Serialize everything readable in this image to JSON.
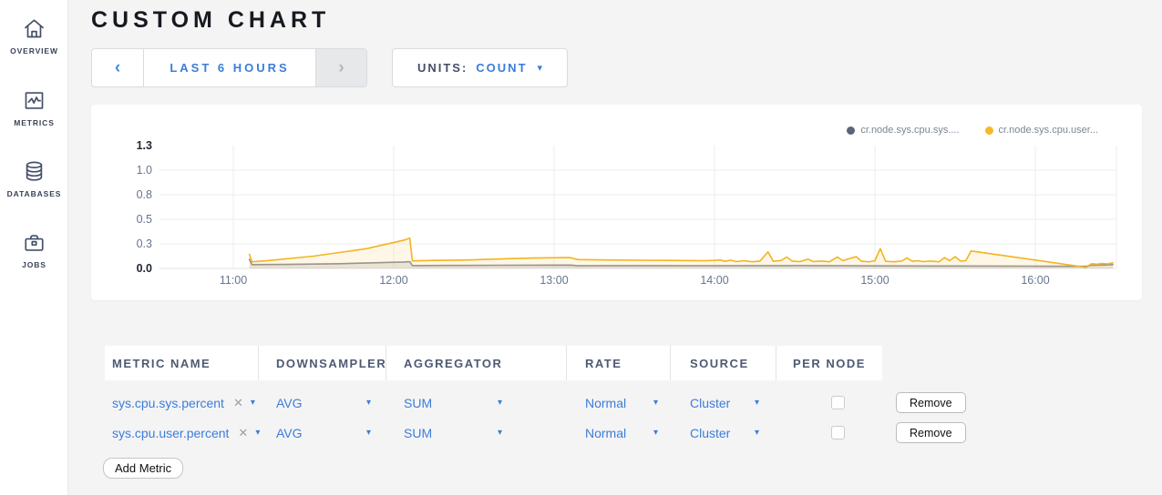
{
  "sidebar": {
    "items": [
      {
        "label": "OVERVIEW",
        "icon": "home-icon"
      },
      {
        "label": "METRICS",
        "icon": "metrics-icon"
      },
      {
        "label": "DATABASES",
        "icon": "databases-icon"
      },
      {
        "label": "JOBS",
        "icon": "jobs-icon"
      }
    ]
  },
  "header": {
    "title": "CUSTOM CHART"
  },
  "controls": {
    "time_range": {
      "prev": "‹",
      "label": "LAST 6 HOURS",
      "next": "›"
    },
    "units": {
      "label": "UNITS:",
      "value": "COUNT",
      "caret": "▾"
    }
  },
  "colors": {
    "accent": "#3b7dd8",
    "page_bg": "#f4f4f5"
  },
  "chart_data": {
    "type": "line",
    "ylim": [
      0,
      1.3
    ],
    "xlim_minutes": [
      632,
      990
    ],
    "grid": true,
    "legend_position": "top-right",
    "y_ticks": [
      {
        "v": 1.3,
        "label": "1.3",
        "bold": true,
        "gridline": false
      },
      {
        "v": 1.04,
        "label": "1.0",
        "bold": false,
        "gridline": true
      },
      {
        "v": 0.78,
        "label": "0.8",
        "bold": false,
        "gridline": true
      },
      {
        "v": 0.52,
        "label": "0.5",
        "bold": false,
        "gridline": true
      },
      {
        "v": 0.26,
        "label": "0.3",
        "bold": false,
        "gridline": true
      },
      {
        "v": 0,
        "label": "0.0",
        "bold": true,
        "gridline": true
      }
    ],
    "x_ticks": [
      {
        "t": 660,
        "label": "11:00"
      },
      {
        "t": 720,
        "label": "12:00"
      },
      {
        "t": 780,
        "label": "13:00"
      },
      {
        "t": 840,
        "label": "14:00"
      },
      {
        "t": 900,
        "label": "15:00"
      },
      {
        "t": 960,
        "label": "16:00"
      }
    ],
    "legend": [
      {
        "label": "cr.node.sys.cpu.sys....",
        "color": "#5b6579"
      },
      {
        "label": "cr.node.sys.cpu.user...",
        "color": "#f7b928"
      }
    ],
    "series": [
      {
        "name": "cr.node.sys.cpu.sys....",
        "stroke": "#8b8f98",
        "fill": "rgba(139,143,152,0.20)",
        "points": [
          [
            666,
            0.095
          ],
          [
            667,
            0.04
          ],
          [
            680,
            0.042
          ],
          [
            700,
            0.05
          ],
          [
            724,
            0.068
          ],
          [
            726,
            0.072
          ],
          [
            727,
            0.03
          ],
          [
            740,
            0.032
          ],
          [
            760,
            0.034
          ],
          [
            786,
            0.036
          ],
          [
            789,
            0.028
          ],
          [
            810,
            0.03
          ],
          [
            840,
            0.028
          ],
          [
            870,
            0.03
          ],
          [
            900,
            0.027
          ],
          [
            930,
            0.026
          ],
          [
            960,
            0.024
          ],
          [
            979,
            0.022
          ],
          [
            981,
            0.034
          ],
          [
            985,
            0.036
          ],
          [
            989,
            0.04
          ]
        ]
      },
      {
        "name": "cr.node.sys.cpu.user...",
        "stroke": "#f3b41f",
        "fill": "rgba(247,196,68,0.13)",
        "points": [
          [
            666,
            0.15
          ],
          [
            667,
            0.07
          ],
          [
            672,
            0.08
          ],
          [
            690,
            0.13
          ],
          [
            710,
            0.21
          ],
          [
            724,
            0.3
          ],
          [
            726,
            0.32
          ],
          [
            727,
            0.08
          ],
          [
            735,
            0.085
          ],
          [
            748,
            0.09
          ],
          [
            760,
            0.1
          ],
          [
            772,
            0.11
          ],
          [
            786,
            0.115
          ],
          [
            789,
            0.093
          ],
          [
            800,
            0.09
          ],
          [
            812,
            0.087
          ],
          [
            824,
            0.085
          ],
          [
            836,
            0.082
          ],
          [
            840,
            0.085
          ],
          [
            842,
            0.09
          ],
          [
            844,
            0.075
          ],
          [
            846,
            0.088
          ],
          [
            848,
            0.072
          ],
          [
            851,
            0.082
          ],
          [
            854,
            0.07
          ],
          [
            857,
            0.078
          ],
          [
            860,
            0.175
          ],
          [
            862,
            0.075
          ],
          [
            865,
            0.085
          ],
          [
            867,
            0.12
          ],
          [
            869,
            0.078
          ],
          [
            872,
            0.072
          ],
          [
            875,
            0.098
          ],
          [
            877,
            0.072
          ],
          [
            880,
            0.078
          ],
          [
            883,
            0.07
          ],
          [
            886,
            0.12
          ],
          [
            888,
            0.082
          ],
          [
            890,
            0.1
          ],
          [
            893,
            0.125
          ],
          [
            895,
            0.075
          ],
          [
            898,
            0.07
          ],
          [
            900,
            0.082
          ],
          [
            902,
            0.21
          ],
          [
            904,
            0.075
          ],
          [
            907,
            0.07
          ],
          [
            910,
            0.078
          ],
          [
            912,
            0.11
          ],
          [
            914,
            0.075
          ],
          [
            916,
            0.082
          ],
          [
            918,
            0.072
          ],
          [
            921,
            0.078
          ],
          [
            924,
            0.07
          ],
          [
            926,
            0.115
          ],
          [
            928,
            0.082
          ],
          [
            930,
            0.125
          ],
          [
            932,
            0.078
          ],
          [
            934,
            0.082
          ],
          [
            936,
            0.185
          ],
          [
            979,
            0.012
          ],
          [
            981,
            0.05
          ],
          [
            983,
            0.045
          ],
          [
            985,
            0.052
          ],
          [
            987,
            0.048
          ],
          [
            989,
            0.06
          ]
        ]
      }
    ]
  },
  "metrics_table": {
    "columns": [
      "METRIC NAME",
      "DOWNSAMPLER",
      "AGGREGATOR",
      "RATE",
      "SOURCE",
      "PER NODE"
    ],
    "rows": [
      {
        "metric": "sys.cpu.sys.percent",
        "clear": "✕",
        "downsampler": "AVG",
        "aggregator": "SUM",
        "rate": "Normal",
        "source": "Cluster",
        "per_node": false,
        "remove_label": "Remove"
      },
      {
        "metric": "sys.cpu.user.percent",
        "clear": "✕",
        "downsampler": "AVG",
        "aggregator": "SUM",
        "rate": "Normal",
        "source": "Cluster",
        "per_node": false,
        "remove_label": "Remove"
      }
    ],
    "add_button": "Add Metric"
  }
}
